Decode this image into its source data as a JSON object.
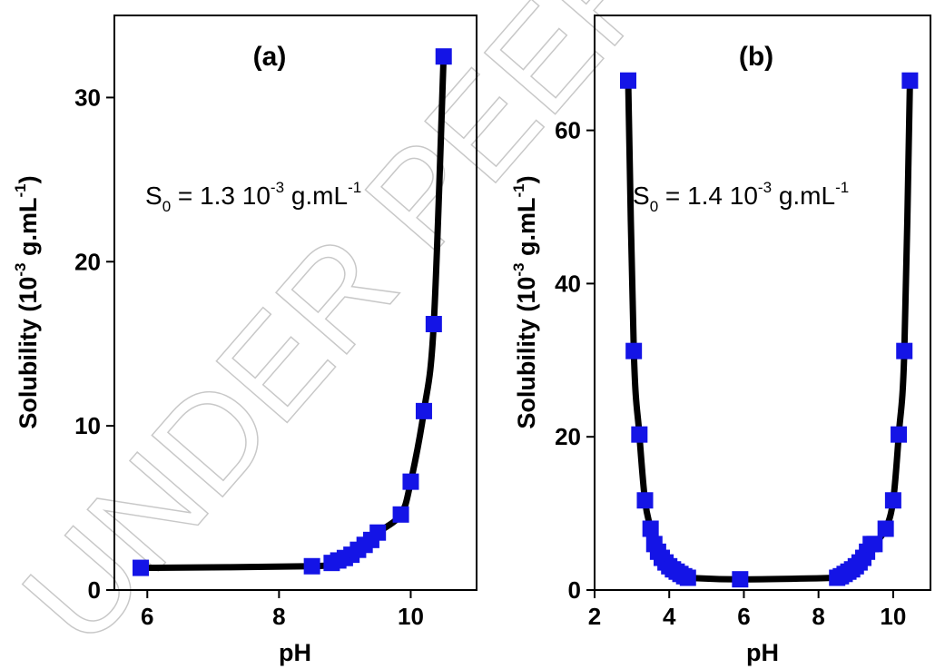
{
  "watermark": "UNDER PEER REVIEW",
  "colors": {
    "marker": "#1414e6",
    "line": "#000000",
    "axis": "#000000"
  },
  "chart_data": [
    {
      "type": "scatter",
      "panel_label": "(a)",
      "annotation": {
        "s": "S",
        "sub": "0",
        "middle": " = 1.3 10",
        "exp": "-3",
        "unit": " g.mL",
        "unit_exp": "-1"
      },
      "xlabel": "pH",
      "ylabel": {
        "main": "Solubility (10",
        "exp1": "-3",
        "unit": " g.mL",
        "exp2": "-1",
        "close": ")"
      },
      "xlim": [
        5.5,
        11
      ],
      "ylim": [
        0,
        35
      ],
      "xticks": [
        6,
        8,
        10
      ],
      "yticks": [
        0,
        10,
        20,
        30
      ],
      "grid": false,
      "series": [
        {
          "marker": "square",
          "line": "curve",
          "x": [
            5.9,
            8.5,
            8.8,
            8.9,
            9.0,
            9.1,
            9.2,
            9.3,
            9.4,
            9.5,
            9.85,
            10.0,
            10.2,
            10.35,
            10.5
          ],
          "y": [
            1.35,
            1.45,
            1.65,
            1.8,
            1.95,
            2.15,
            2.45,
            2.75,
            3.05,
            3.5,
            4.6,
            6.6,
            10.9,
            16.2,
            32.5
          ]
        }
      ]
    },
    {
      "type": "scatter",
      "panel_label": "(b)",
      "annotation": {
        "s": "S",
        "sub": "0",
        "middle": " = 1.4 10",
        "exp": "-3",
        "unit": " g.mL",
        "unit_exp": "-1"
      },
      "xlabel": "pH",
      "ylabel": {
        "main": "Solubility (10",
        "exp1": "-3",
        "unit": " g.mL",
        "exp2": "-1",
        "close": ")"
      },
      "xlim": [
        2,
        11
      ],
      "ylim": [
        0,
        75
      ],
      "xticks": [
        2,
        4,
        6,
        8,
        10
      ],
      "yticks": [
        0,
        20,
        40,
        60
      ],
      "grid": false,
      "series": [
        {
          "marker": "square",
          "line": "curve",
          "x": [
            2.9,
            3.05,
            3.2,
            3.35,
            3.5,
            3.6,
            3.7,
            3.8,
            3.9,
            4.0,
            4.1,
            4.2,
            4.3,
            4.4,
            4.5,
            5.9,
            8.5,
            8.6,
            8.7,
            8.8,
            8.9,
            9.0,
            9.1,
            9.2,
            9.3,
            9.4,
            9.5,
            9.8,
            10.0,
            10.15,
            10.3,
            10.45
          ],
          "y": [
            66.5,
            31.2,
            20.3,
            11.7,
            8.0,
            6.0,
            5.0,
            4.2,
            3.6,
            3.1,
            2.7,
            2.4,
            2.1,
            1.8,
            1.6,
            1.4,
            1.6,
            1.8,
            2.1,
            2.4,
            2.7,
            3.1,
            3.6,
            4.2,
            5.0,
            6.0,
            6.0,
            8.0,
            11.7,
            20.3,
            31.2,
            66.5
          ]
        }
      ]
    }
  ]
}
